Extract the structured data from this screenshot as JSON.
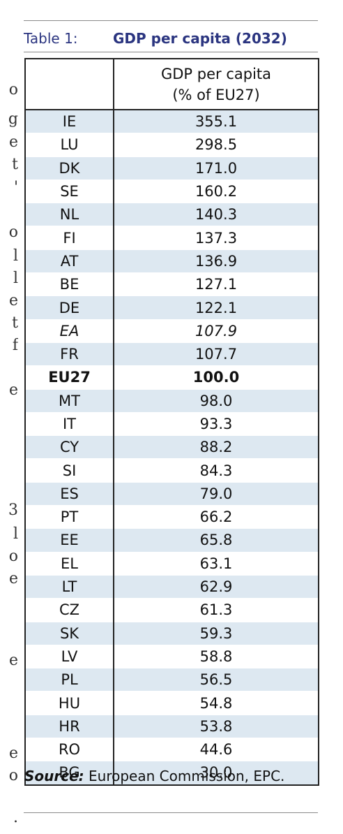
{
  "table": {
    "number_label": "Table 1:",
    "title": "GDP per capita (2032)",
    "header": {
      "col1": "",
      "col2_line1": "GDP per capita",
      "col2_line2": "(% of EU27)"
    },
    "rows": [
      {
        "code": "IE",
        "value": "355.1"
      },
      {
        "code": "LU",
        "value": "298.5"
      },
      {
        "code": "DK",
        "value": "171.0"
      },
      {
        "code": "SE",
        "value": "160.2"
      },
      {
        "code": "NL",
        "value": "140.3"
      },
      {
        "code": "FI",
        "value": "137.3"
      },
      {
        "code": "AT",
        "value": "136.9"
      },
      {
        "code": "BE",
        "value": "127.1"
      },
      {
        "code": "DE",
        "value": "122.1"
      },
      {
        "code": "EA",
        "value": "107.9",
        "style": "italic"
      },
      {
        "code": "FR",
        "value": "107.7"
      },
      {
        "code": "EU27",
        "value": "100.0",
        "style": "bold"
      },
      {
        "code": "MT",
        "value": "98.0"
      },
      {
        "code": "IT",
        "value": "93.3"
      },
      {
        "code": "CY",
        "value": "88.2"
      },
      {
        "code": "SI",
        "value": "84.3"
      },
      {
        "code": "ES",
        "value": "79.0"
      },
      {
        "code": "PT",
        "value": "66.2"
      },
      {
        "code": "EE",
        "value": "65.8"
      },
      {
        "code": "EL",
        "value": "63.1"
      },
      {
        "code": "LT",
        "value": "62.9"
      },
      {
        "code": "CZ",
        "value": "61.3"
      },
      {
        "code": "SK",
        "value": "59.3"
      },
      {
        "code": "LV",
        "value": "58.8"
      },
      {
        "code": "PL",
        "value": "56.5"
      },
      {
        "code": "HU",
        "value": "54.8"
      },
      {
        "code": "HR",
        "value": "53.8"
      },
      {
        "code": "RO",
        "value": "44.6"
      },
      {
        "code": "BG",
        "value": "30.0"
      }
    ]
  },
  "source": {
    "label": "Source:",
    "text": " European Commission, EPC."
  },
  "colors": {
    "title": "#2b3580",
    "row_stripe": "#dde8f1",
    "border": "#222222"
  }
}
